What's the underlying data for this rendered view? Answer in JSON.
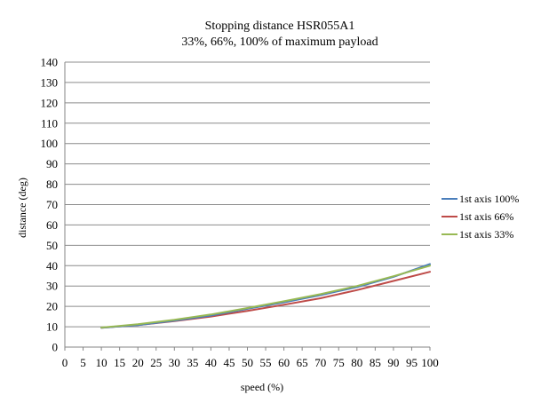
{
  "chart_data": {
    "type": "line",
    "title": "Stopping distance HSR055A1",
    "subtitle": "33%, 66%, 100% of maximum payload",
    "xlabel": "speed (%)",
    "ylabel": "distance (deg)",
    "xlim": [
      0,
      100
    ],
    "ylim": [
      0,
      140
    ],
    "x_ticks": [
      0,
      5,
      10,
      15,
      20,
      25,
      30,
      35,
      40,
      45,
      50,
      55,
      60,
      65,
      70,
      75,
      80,
      85,
      90,
      95,
      100
    ],
    "y_ticks": [
      0,
      10,
      20,
      30,
      40,
      50,
      60,
      70,
      80,
      90,
      100,
      110,
      120,
      130,
      140
    ],
    "grid": "horizontal",
    "legend_position": "right",
    "x": [
      10,
      20,
      30,
      40,
      50,
      60,
      70,
      80,
      90,
      100
    ],
    "series": [
      {
        "name": "1st axis 100%",
        "color": "#4a7ebb",
        "values": [
          9.5,
          10.8,
          13.0,
          15.5,
          18.8,
          22.0,
          25.5,
          29.5,
          34.5,
          40.8
        ]
      },
      {
        "name": "1st axis 66%",
        "color": "#be4b48",
        "values": [
          9.5,
          10.8,
          12.8,
          15.0,
          17.8,
          20.8,
          24.0,
          28.0,
          32.5,
          37.0
        ]
      },
      {
        "name": "1st axis 33%",
        "color": "#98b954",
        "values": [
          9.6,
          11.2,
          13.4,
          16.0,
          19.2,
          22.5,
          26.0,
          30.0,
          34.8,
          40.0
        ]
      }
    ]
  }
}
